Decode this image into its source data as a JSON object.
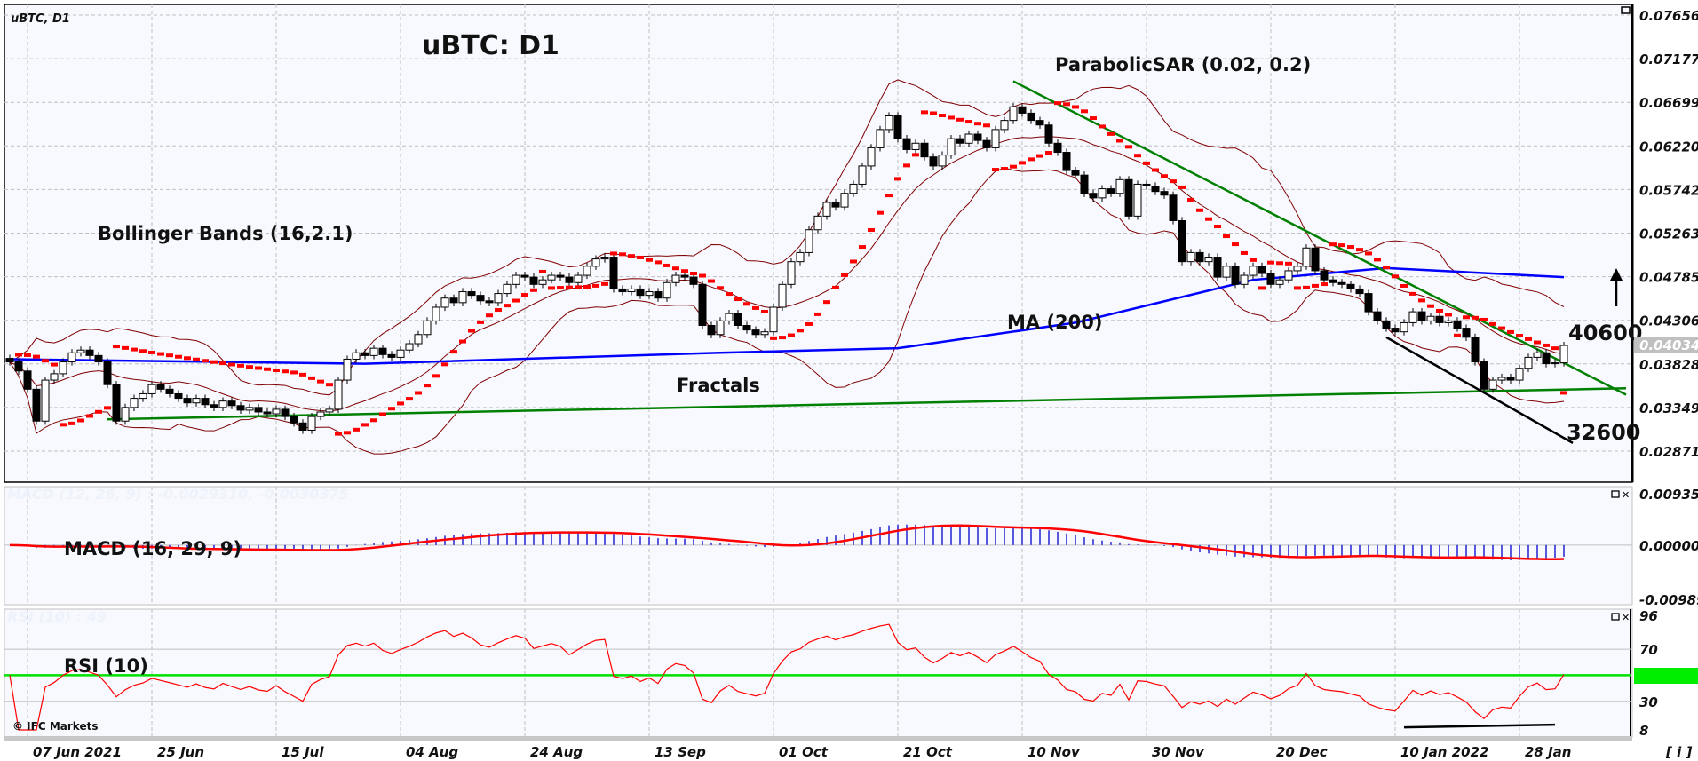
{
  "symbol_label": "uBTC, D1",
  "copyright": "© IFC Markets",
  "info_button": "[ i ]",
  "chart_data": {
    "type": "candlestick",
    "title": "uBTC: D1",
    "annotations": {
      "parabolic_sar": "ParabolicSAR (0.02, 0.2)",
      "bollinger": "Bollinger Bands (16,2.1)",
      "ma": "MA (200)",
      "fractals": "Fractals",
      "resistance_level": "40600",
      "support_level": "32600",
      "direction": "up-arrow"
    },
    "current_price": "0.040343",
    "y_ticks": [
      "0.076560",
      "0.071775",
      "0.066990",
      "0.062205",
      "0.057420",
      "0.052635",
      "0.047850",
      "0.043065",
      "0.038280",
      "0.033495",
      "0.028710"
    ],
    "ylim": [
      0.02871,
      0.07656
    ],
    "x_ticks": [
      "07 Jun 2021",
      "25 Jun",
      "15 Jul",
      "04 Aug",
      "24 Aug",
      "13 Sep",
      "01 Oct",
      "21 Oct",
      "10 Nov",
      "30 Nov",
      "20 Dec",
      "10 Jan 2022",
      "28 Jan"
    ],
    "close": [
      0.0385,
      0.0375,
      0.0355,
      0.032,
      0.0365,
      0.0372,
      0.0385,
      0.0395,
      0.0398,
      0.0392,
      0.0385,
      0.036,
      0.032,
      0.0335,
      0.0345,
      0.035,
      0.036,
      0.0355,
      0.035,
      0.0345,
      0.034,
      0.0345,
      0.0338,
      0.0335,
      0.0342,
      0.0337,
      0.0332,
      0.0335,
      0.033,
      0.0328,
      0.0333,
      0.0325,
      0.0318,
      0.031,
      0.0325,
      0.033,
      0.0333,
      0.0365,
      0.0388,
      0.0395,
      0.0392,
      0.04,
      0.0393,
      0.039,
      0.0398,
      0.0405,
      0.0415,
      0.043,
      0.0445,
      0.0455,
      0.045,
      0.0462,
      0.0458,
      0.0452,
      0.045,
      0.046,
      0.047,
      0.048,
      0.0478,
      0.047,
      0.0475,
      0.048,
      0.0478,
      0.0472,
      0.048,
      0.049,
      0.0498,
      0.05,
      0.0465,
      0.0462,
      0.0465,
      0.0458,
      0.0462,
      0.0455,
      0.0472,
      0.048,
      0.0478,
      0.047,
      0.0425,
      0.0415,
      0.043,
      0.0438,
      0.0425,
      0.042,
      0.0415,
      0.0418,
      0.0445,
      0.047,
      0.0495,
      0.0505,
      0.053,
      0.0545,
      0.056,
      0.0555,
      0.057,
      0.058,
      0.06,
      0.062,
      0.064,
      0.0655,
      0.063,
      0.0618,
      0.0625,
      0.061,
      0.06,
      0.0612,
      0.063,
      0.0625,
      0.0635,
      0.0628,
      0.062,
      0.064,
      0.065,
      0.0665,
      0.0658,
      0.065,
      0.0645,
      0.0625,
      0.0615,
      0.0595,
      0.059,
      0.057,
      0.0565,
      0.0575,
      0.057,
      0.0585,
      0.0545,
      0.058,
      0.0578,
      0.0572,
      0.0568,
      0.054,
      0.0495,
      0.0505,
      0.0495,
      0.05,
      0.0478,
      0.049,
      0.047,
      0.048,
      0.049,
      0.0482,
      0.047,
      0.0475,
      0.0485,
      0.049,
      0.051,
      0.0485,
      0.0475,
      0.0472,
      0.047,
      0.0465,
      0.046,
      0.044,
      0.043,
      0.0422,
      0.0418,
      0.0428,
      0.044,
      0.043,
      0.0435,
      0.0428,
      0.043,
      0.0422,
      0.0412,
      0.0385,
      0.0355,
      0.0365,
      0.0368,
      0.0365,
      0.0378,
      0.039,
      0.0395,
      0.0383,
      0.0384,
      0.0403
    ],
    "ma200": [
      [
        0,
        0.0388
      ],
      [
        40,
        0.0383
      ],
      [
        80,
        0.0395
      ],
      [
        100,
        0.04
      ],
      [
        120,
        0.0428
      ],
      [
        140,
        0.0475
      ],
      [
        155,
        0.0488
      ],
      [
        175,
        0.0478
      ]
    ],
    "trend_lines": [
      {
        "color": "#008000",
        "from": [
          11,
          0.0322
        ],
        "to": [
          182,
          0.0356
        ]
      },
      {
        "color": "#008000",
        "from": [
          113,
          0.0693
        ],
        "to": [
          182,
          0.0349
        ]
      },
      {
        "color": "#000000",
        "from": [
          155,
          0.0412
        ],
        "to": [
          176,
          0.0296
        ]
      }
    ],
    "bollinger": {
      "period": 16,
      "deviation": 2.1
    },
    "sar": {
      "step": 0.02,
      "max": 0.2
    },
    "macd": {
      "label": "MACD (16, 29, 9)",
      "faint_label": "MACD (12, 26, 9) : -0.0029310, -0.0030375",
      "fast": 16,
      "slow": 29,
      "signal": 9,
      "y_ticks": [
        "0.009353",
        "0.000000",
        "-0.009897"
      ],
      "ylim": [
        -0.009897,
        0.009353
      ]
    },
    "rsi": {
      "label": "RSI (10)",
      "faint_label": "RSI (10) : 49",
      "period": 10,
      "y_ticks": [
        "96",
        "70",
        "50",
        "30",
        "8"
      ],
      "levels": [
        70,
        50,
        30
      ],
      "highlight_level": "50",
      "ylim": [
        8,
        96
      ],
      "trend_line": {
        "from": [
          157,
          10
        ],
        "to": [
          174,
          12
        ]
      }
    },
    "colors": {
      "background": "#f7f9fe",
      "bull": "#ffffff",
      "bear": "#000000",
      "bands": "#800000",
      "ma": "#0000ff",
      "sar": "#ff0000",
      "fractal_up": "#00cc00",
      "fractal_down": "#ff0000",
      "macd_hist": "#0000cc",
      "macd_signal": "#ff0000",
      "rsi_line": "#ff0000",
      "rsi_mid": "#00e000",
      "grid": "#c0c0c0"
    }
  }
}
